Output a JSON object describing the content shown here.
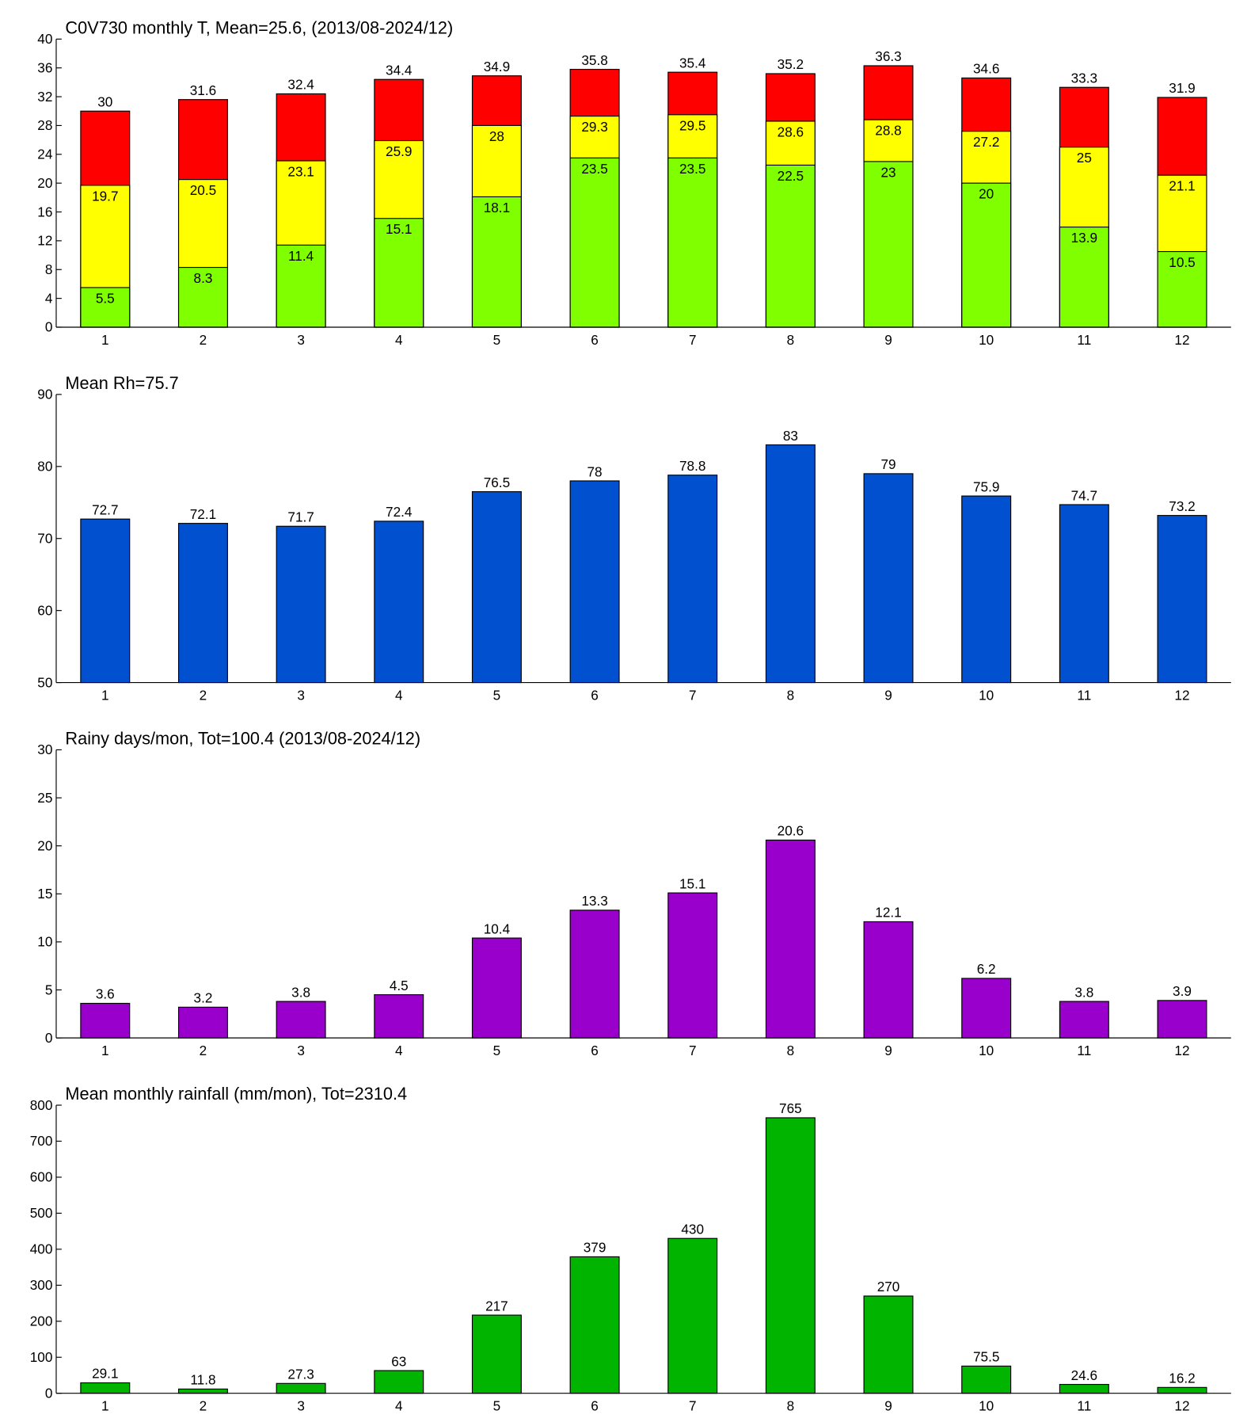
{
  "chart_data": [
    {
      "type": "bar",
      "title": "C0V730 monthly T, Mean=25.6, (2013/08-2024/12)",
      "categories": [
        "1",
        "2",
        "3",
        "4",
        "5",
        "6",
        "7",
        "8",
        "9",
        "10",
        "11",
        "12"
      ],
      "series": [
        {
          "color": "#ff0000",
          "values": [
            30,
            31.6,
            32.4,
            34.4,
            34.9,
            35.8,
            35.4,
            35.2,
            36.3,
            34.6,
            33.3,
            31.9
          ]
        },
        {
          "color": "#ffff00",
          "values": [
            19.7,
            20.5,
            23.1,
            25.9,
            28,
            29.3,
            29.5,
            28.6,
            28.8,
            27.2,
            25,
            21.1
          ]
        },
        {
          "color": "#80ff00",
          "values": [
            5.5,
            8.3,
            11.4,
            15.1,
            18.1,
            23.5,
            23.5,
            22.5,
            23,
            20,
            13.9,
            10.5
          ]
        }
      ],
      "ylim": [
        0,
        40
      ],
      "yticks": [
        0,
        4,
        8,
        12,
        16,
        20,
        24,
        28,
        32,
        36,
        40
      ]
    },
    {
      "type": "bar",
      "title": "Mean Rh=75.7",
      "categories": [
        "1",
        "2",
        "3",
        "4",
        "5",
        "6",
        "7",
        "8",
        "9",
        "10",
        "11",
        "12"
      ],
      "values": [
        72.7,
        72.1,
        71.7,
        72.4,
        76.5,
        78,
        78.8,
        83,
        79,
        75.9,
        74.7,
        73.2
      ],
      "color": "#0050d0",
      "ylim": [
        50,
        90
      ],
      "yticks": [
        50,
        60,
        70,
        80,
        90
      ]
    },
    {
      "type": "bar",
      "title": "Rainy days/mon, Tot=100.4 (2013/08-2024/12)",
      "categories": [
        "1",
        "2",
        "3",
        "4",
        "5",
        "6",
        "7",
        "8",
        "9",
        "10",
        "11",
        "12"
      ],
      "values": [
        3.6,
        3.2,
        3.8,
        4.5,
        10.4,
        13.3,
        15.1,
        20.6,
        12.1,
        6.2,
        3.8,
        3.9
      ],
      "color": "#9900cc",
      "ylim": [
        0,
        30
      ],
      "yticks": [
        0,
        5,
        10,
        15,
        20,
        25,
        30
      ]
    },
    {
      "type": "bar",
      "title": "Mean monthly rainfall (mm/mon), Tot=2310.4",
      "categories": [
        "1",
        "2",
        "3",
        "4",
        "5",
        "6",
        "7",
        "8",
        "9",
        "10",
        "11",
        "12"
      ],
      "values": [
        29.1,
        11.8,
        27.3,
        63,
        217,
        379,
        430,
        765,
        270,
        75.5,
        24.6,
        16.2
      ],
      "color": "#00b400",
      "ylim": [
        0,
        800
      ],
      "yticks": [
        0,
        100,
        200,
        300,
        400,
        500,
        600,
        700,
        800
      ]
    }
  ]
}
